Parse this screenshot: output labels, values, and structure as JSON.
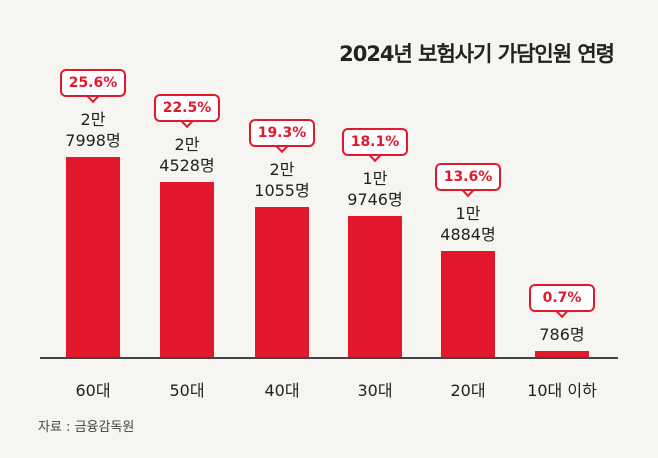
{
  "chart_data": {
    "type": "bar",
    "title": "2024년 보험사기 가담인원 연령",
    "categories": [
      "60대",
      "50대",
      "40대",
      "30대",
      "20대",
      "10대 이하"
    ],
    "values": [
      27998,
      24528,
      21055,
      19746,
      14884,
      786
    ],
    "value_labels": [
      "2만\n7998명",
      "2만\n4528명",
      "2만\n1055명",
      "1만\n9746명",
      "1만\n4884명",
      "786명"
    ],
    "share_labels": [
      "25.6%",
      "22.5%",
      "19.3%",
      "18.1%",
      "13.6%",
      "0.7%"
    ],
    "color": "#e3182d",
    "ylim": [
      0,
      30000
    ],
    "source": "자료 : 금융감독원"
  }
}
